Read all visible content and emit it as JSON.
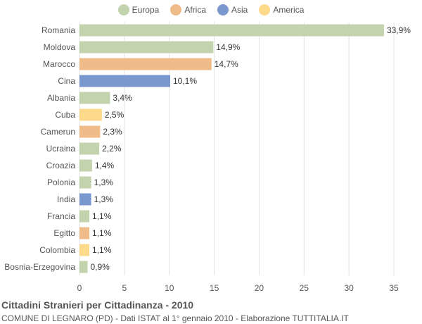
{
  "chart_data": {
    "type": "bar",
    "orientation": "horizontal",
    "categories": [
      "Romania",
      "Moldova",
      "Marocco",
      "Cina",
      "Albania",
      "Cuba",
      "Camerun",
      "Ucraina",
      "Croazia",
      "Polonia",
      "India",
      "Francia",
      "Egitto",
      "Colombia",
      "Bosnia-Erzegovina"
    ],
    "values": [
      33.9,
      14.9,
      14.7,
      10.1,
      3.4,
      2.5,
      2.3,
      2.2,
      1.4,
      1.3,
      1.3,
      1.1,
      1.1,
      1.1,
      0.9
    ],
    "value_labels": [
      "33,9%",
      "14,9%",
      "14,7%",
      "10,1%",
      "3,4%",
      "2,5%",
      "2,3%",
      "2,2%",
      "1,4%",
      "1,3%",
      "1,3%",
      "1,1%",
      "1,1%",
      "1,1%",
      "0,9%"
    ],
    "groups": [
      "Europa",
      "Europa",
      "Africa",
      "Asia",
      "Europa",
      "America",
      "Africa",
      "Europa",
      "Europa",
      "Europa",
      "Asia",
      "Europa",
      "Africa",
      "America",
      "Europa"
    ],
    "legend": [
      {
        "name": "Europa",
        "color": "#c3d3ad"
      },
      {
        "name": "Africa",
        "color": "#efbb88"
      },
      {
        "name": "Asia",
        "color": "#7b98ce"
      },
      {
        "name": "America",
        "color": "#fdd98c"
      }
    ],
    "legend_position": "top",
    "xlim": [
      0,
      35
    ],
    "xticks": [
      0,
      5,
      10,
      15,
      20,
      25,
      30,
      35
    ],
    "grid": true
  },
  "footer": {
    "title": "Cittadini Stranieri per Cittadinanza - 2010",
    "subtitle": "COMUNE DI LEGNARO (PD) - Dati ISTAT al 1° gennaio 2010 - Elaborazione TUTTITALIA.IT"
  }
}
